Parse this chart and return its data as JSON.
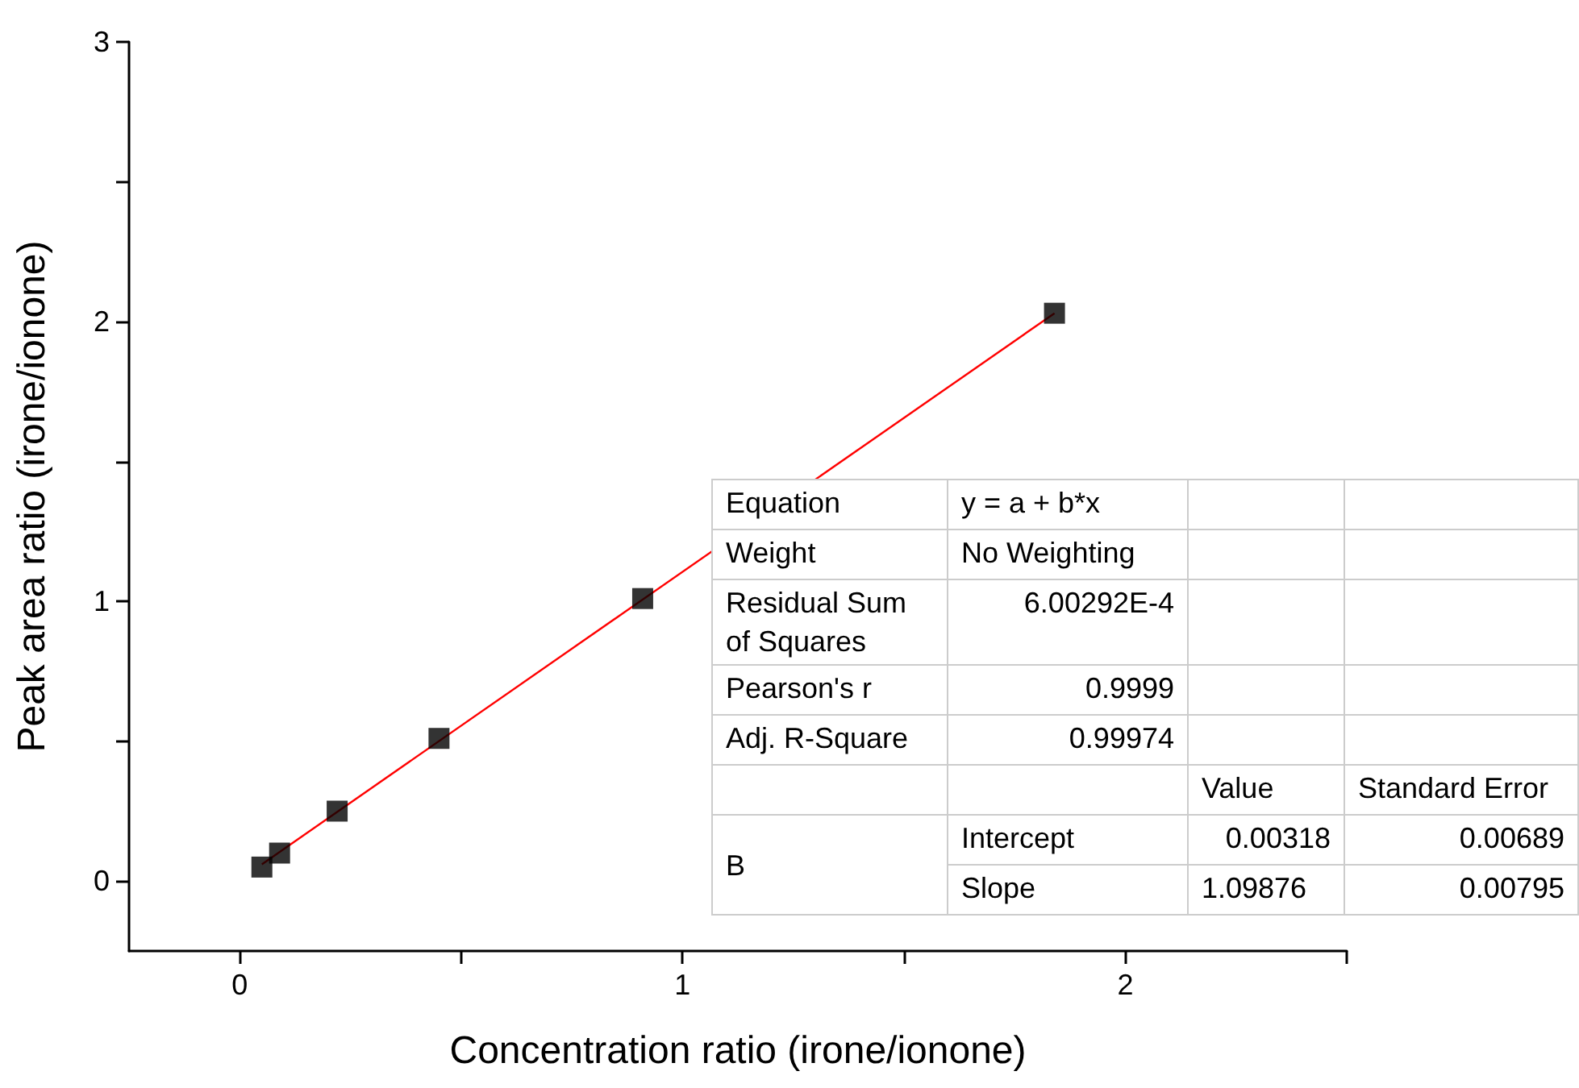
{
  "chart_data": {
    "type": "scatter",
    "xlabel": "Concentration ratio (irone/ionone)",
    "ylabel": "Peak area ratio (irone/ionone)",
    "xlim": [
      -0.25,
      2.5
    ],
    "ylim": [
      -0.25,
      3
    ],
    "xticks": [
      0,
      {
        "value": 0.5,
        "label": null
      },
      1,
      {
        "value": 1.5,
        "label": null
      },
      2,
      {
        "value": 2.5,
        "label": null
      }
    ],
    "yticks": [
      0,
      {
        "value": 0.5,
        "label": null
      },
      1,
      {
        "value": 1.5,
        "label": null
      },
      2,
      {
        "value": 2.5,
        "label": null
      },
      3
    ],
    "grid": false,
    "series": [
      {
        "marker": "square",
        "color": "#000000",
        "x": [
          0.05,
          0.09,
          0.22,
          0.45,
          0.91,
          1.84
        ],
        "values": [
          0.05,
          0.1,
          0.25,
          0.51,
          1.01,
          2.03
        ]
      },
      {
        "type": "line",
        "marker": "none",
        "color": "#ff0000",
        "x": [
          0.05,
          1.84
        ],
        "values": [
          0.06,
          2.03
        ]
      }
    ],
    "annotations": [
      "Equation",
      "y = a + b*x",
      "Weight",
      "No Weighting",
      "Residual Sum of Squares",
      "6.00292E-4",
      "Pearson's r",
      "0.9999",
      "Adj. R-Square",
      "0.99974",
      "Value",
      "Standard Error",
      "B",
      "Intercept",
      "0.00318",
      "0.00689",
      "Slope",
      "1.09876",
      "0.00795"
    ]
  }
}
